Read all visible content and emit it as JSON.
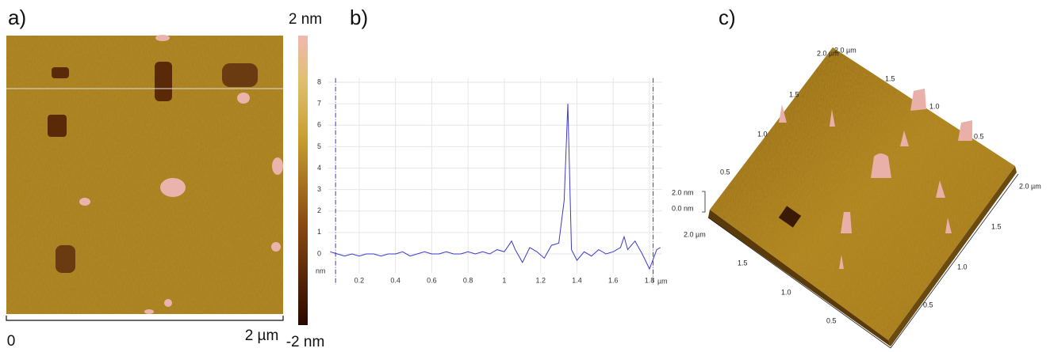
{
  "panel_a": {
    "label": "a)",
    "colorbar_max": "2 nm",
    "colorbar_min": "-2 nm",
    "scale_start": "0",
    "scale_end": "2 µm"
  },
  "chart_data": {
    "type": "line",
    "label": "b)",
    "y_unit": "nm",
    "x_unit": "µm",
    "xlim": [
      0.03,
      1.87
    ],
    "ylim": [
      -0.9,
      8.2
    ],
    "xticks": [
      0.2,
      0.4,
      0.6,
      0.8,
      1,
      1.2,
      1.4,
      1.6,
      1.8
    ],
    "yticks": [
      0,
      1,
      2,
      3,
      4,
      5,
      6,
      7,
      8
    ],
    "grid": true,
    "cursor_x": [
      0.07,
      1.82
    ],
    "series": [
      {
        "color": "#3a3acc",
        "x": [
          0.04,
          0.08,
          0.12,
          0.16,
          0.2,
          0.24,
          0.28,
          0.32,
          0.36,
          0.4,
          0.44,
          0.48,
          0.52,
          0.56,
          0.6,
          0.64,
          0.68,
          0.72,
          0.76,
          0.8,
          0.84,
          0.88,
          0.92,
          0.96,
          1.0,
          1.04,
          1.06,
          1.1,
          1.14,
          1.18,
          1.22,
          1.26,
          1.3,
          1.33,
          1.35,
          1.37,
          1.4,
          1.44,
          1.48,
          1.52,
          1.56,
          1.6,
          1.64,
          1.66,
          1.68,
          1.72,
          1.76,
          1.8,
          1.84,
          1.86
        ],
        "values": [
          0.1,
          0.0,
          -0.1,
          0.0,
          -0.1,
          0.0,
          0.0,
          -0.1,
          0.0,
          0.0,
          0.1,
          -0.1,
          0.0,
          0.1,
          0.0,
          0.0,
          0.1,
          0.0,
          0.0,
          0.1,
          0.0,
          0.1,
          0.0,
          0.2,
          0.1,
          0.6,
          0.2,
          -0.4,
          0.3,
          0.1,
          -0.2,
          0.4,
          0.5,
          2.5,
          7.0,
          0.2,
          -0.3,
          0.1,
          -0.1,
          0.2,
          0.0,
          0.1,
          0.3,
          0.8,
          0.2,
          0.6,
          0.0,
          -0.7,
          0.2,
          0.3
        ]
      }
    ]
  },
  "panel_c": {
    "label": "c)",
    "z_labels": [
      "2.0 nm",
      "0.0 nm"
    ],
    "back_left_edge": [
      "2.0 µm",
      "1.5",
      "1.0",
      "0.5"
    ],
    "back_right_edge": [
      "2.0 µm",
      "1.5",
      "1.0",
      "0.5",
      "2.0 µm"
    ],
    "front_left_edge": [
      "2.0 µm",
      "1.5",
      "1.0",
      "0.5"
    ],
    "front_right_edge": [
      "1.5",
      "1.0",
      "0.5"
    ]
  }
}
